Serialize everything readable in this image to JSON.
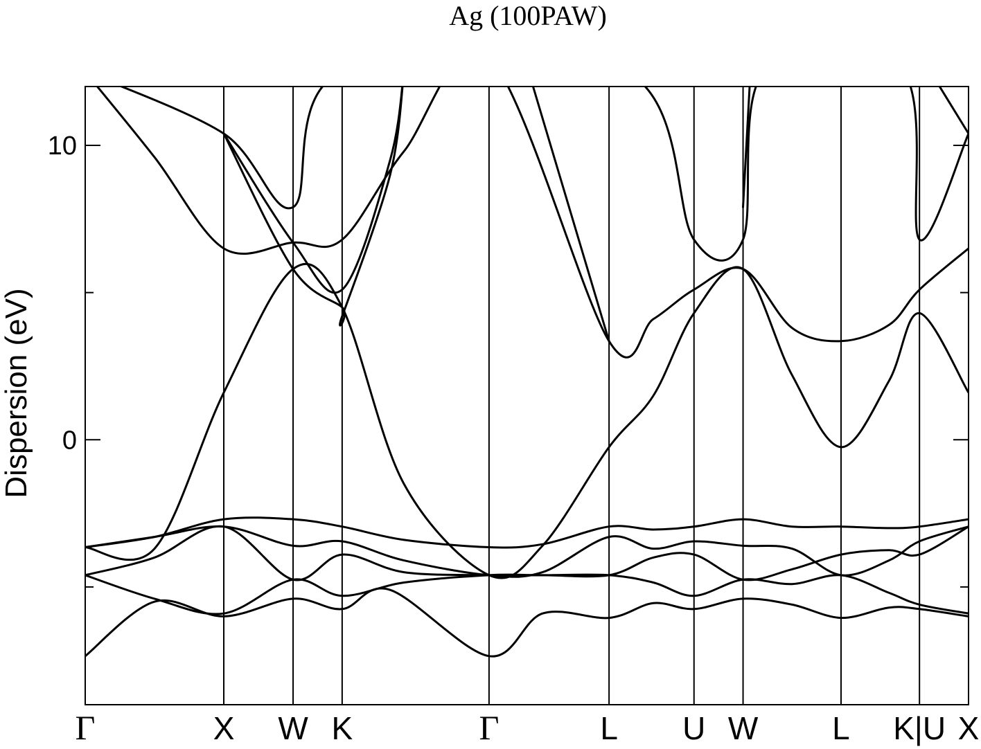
{
  "chart_data": {
    "type": "line",
    "title": "Ag (100PAW)",
    "xlabel": "",
    "ylabel": "Dispersion (eV)",
    "ylim": [
      -9.0,
      12.0
    ],
    "yticks": [
      {
        "value": 10,
        "label": "10"
      },
      {
        "value": 0,
        "label": "0"
      }
    ],
    "yticks_minor": [
      5,
      -5
    ],
    "grid": false,
    "legend": "none",
    "kpoints": [
      {
        "label": "Γ",
        "x": 0.0
      },
      {
        "label": "X",
        "x": 1.0
      },
      {
        "label": "W",
        "x": 1.5
      },
      {
        "label": "K",
        "x": 1.854
      },
      {
        "label": "Γ",
        "x": 2.914
      },
      {
        "label": "L",
        "x": 3.78
      },
      {
        "label": "U",
        "x": 4.393
      },
      {
        "label": "W",
        "x": 4.747
      },
      {
        "label": "L",
        "x": 5.454
      },
      {
        "label": "K|U",
        "x": 6.02
      },
      {
        "label": "X",
        "x": 6.374
      }
    ],
    "xlim": [
      0.0,
      6.374
    ],
    "series": [
      {
        "values": [
          [
            0,
            -7.35
          ],
          [
            0.5,
            -5.5
          ],
          [
            1.0,
            -6.0
          ],
          [
            1.5,
            -5.4
          ],
          [
            1.854,
            -5.75
          ],
          [
            2.2,
            -5.1
          ],
          [
            2.914,
            -7.35
          ],
          [
            3.3,
            -5.9
          ],
          [
            3.78,
            -6.05
          ],
          [
            4.1,
            -5.55
          ],
          [
            4.393,
            -5.75
          ],
          [
            4.747,
            -5.4
          ],
          [
            5.1,
            -5.6
          ],
          [
            5.454,
            -6.05
          ],
          [
            5.8,
            -5.7
          ],
          [
            6.02,
            -5.75
          ],
          [
            6.374,
            -6.0
          ]
        ]
      },
      {
        "values": [
          [
            0,
            -4.6
          ],
          [
            0.5,
            -5.4
          ],
          [
            1.0,
            -5.9
          ],
          [
            1.5,
            -4.75
          ],
          [
            1.854,
            -5.3
          ],
          [
            2.3,
            -4.85
          ],
          [
            2.914,
            -4.6
          ],
          [
            3.3,
            -4.6
          ],
          [
            3.78,
            -4.6
          ],
          [
            4.1,
            -4.85
          ],
          [
            4.393,
            -5.3
          ],
          [
            4.747,
            -4.75
          ],
          [
            5.1,
            -4.9
          ],
          [
            5.454,
            -4.6
          ],
          [
            5.8,
            -5.2
          ],
          [
            6.02,
            -5.6
          ],
          [
            6.374,
            -5.9
          ]
        ]
      },
      {
        "values": [
          [
            0,
            -4.6
          ],
          [
            0.5,
            -4.0
          ],
          [
            1.0,
            -2.95
          ],
          [
            1.5,
            -4.75
          ],
          [
            1.854,
            -3.9
          ],
          [
            2.3,
            -4.5
          ],
          [
            2.914,
            -4.6
          ],
          [
            3.3,
            -4.6
          ],
          [
            3.78,
            -4.6
          ],
          [
            4.1,
            -4.0
          ],
          [
            4.393,
            -3.9
          ],
          [
            4.747,
            -4.75
          ],
          [
            5.1,
            -4.4
          ],
          [
            5.454,
            -3.9
          ],
          [
            5.8,
            -3.75
          ],
          [
            6.02,
            -3.9
          ],
          [
            6.374,
            -2.95
          ]
        ]
      },
      {
        "values": [
          [
            0,
            -3.65
          ],
          [
            0.5,
            -3.3
          ],
          [
            1.0,
            -2.95
          ],
          [
            1.5,
            -3.6
          ],
          [
            1.854,
            -3.45
          ],
          [
            2.3,
            -4.1
          ],
          [
            2.914,
            -4.6
          ],
          [
            3.3,
            -4.5
          ],
          [
            3.78,
            -3.3
          ],
          [
            4.1,
            -3.7
          ],
          [
            4.393,
            -3.45
          ],
          [
            4.747,
            -3.6
          ],
          [
            5.1,
            -3.7
          ],
          [
            5.454,
            -4.6
          ],
          [
            5.8,
            -4.1
          ],
          [
            6.02,
            -3.45
          ],
          [
            6.374,
            -2.95
          ]
        ]
      },
      {
        "values": [
          [
            0,
            -3.65
          ],
          [
            0.5,
            -3.3
          ],
          [
            1.0,
            -2.7
          ],
          [
            1.5,
            -2.7
          ],
          [
            1.854,
            -2.95
          ],
          [
            2.3,
            -3.4
          ],
          [
            2.914,
            -3.65
          ],
          [
            3.3,
            -3.55
          ],
          [
            3.78,
            -2.95
          ],
          [
            4.1,
            -3.05
          ],
          [
            4.393,
            -2.95
          ],
          [
            4.747,
            -2.7
          ],
          [
            5.1,
            -2.95
          ],
          [
            5.454,
            -2.95
          ],
          [
            5.8,
            -3.0
          ],
          [
            6.02,
            -2.95
          ],
          [
            6.374,
            -2.7
          ]
        ]
      },
      {
        "values": [
          [
            0,
            -3.65
          ],
          [
            0.5,
            -3.7
          ],
          [
            1.0,
            1.6
          ],
          [
            1.5,
            5.8
          ],
          [
            1.854,
            4.5
          ],
          [
            2.3,
            -1.5
          ],
          [
            2.914,
            -4.6
          ],
          [
            3.3,
            -3.6
          ],
          [
            3.78,
            -0.25
          ],
          [
            4.1,
            1.5
          ],
          [
            4.393,
            4.3
          ],
          [
            4.747,
            5.8
          ],
          [
            5.1,
            2.2
          ],
          [
            5.454,
            -0.25
          ],
          [
            5.8,
            2.0
          ],
          [
            6.02,
            4.3
          ],
          [
            6.374,
            1.6
          ]
        ]
      },
      {
        "values": [
          [
            0,
            12.5
          ],
          [
            0.5,
            9.6
          ],
          [
            1.0,
            6.5
          ],
          [
            1.5,
            6.7
          ],
          [
            1.854,
            6.8
          ],
          [
            2.3,
            9.8
          ],
          [
            2.914,
            13.0
          ],
          [
            3.78,
            3.35
          ],
          [
            4.1,
            4.1
          ],
          [
            4.393,
            5.1
          ],
          [
            4.747,
            5.8
          ],
          [
            5.1,
            3.8
          ],
          [
            5.454,
            3.35
          ],
          [
            5.8,
            3.9
          ],
          [
            6.02,
            5.1
          ],
          [
            6.374,
            6.5
          ]
        ]
      },
      {
        "values": [
          [
            0,
            12.5
          ],
          [
            1.0,
            10.4
          ],
          [
            1.5,
            7.9
          ],
          [
            1.854,
            12.5
          ],
          [
            3.9,
            12.5
          ],
          [
            4.393,
            6.8
          ],
          [
            4.747,
            6.8
          ],
          [
            4.9,
            12.5
          ],
          [
            5.9,
            12.5
          ],
          [
            6.02,
            6.8
          ],
          [
            6.374,
            10.4
          ]
        ]
      },
      {
        "values": [
          [
            1.0,
            10.4
          ],
          [
            1.5,
            5.8
          ],
          [
            1.854,
            4.5
          ],
          [
            1.854,
            4.2
          ],
          [
            2.2,
            9.0
          ],
          [
            2.3,
            12.5
          ]
        ]
      },
      {
        "values": [
          [
            1.0,
            10.4
          ],
          [
            1.5,
            6.7
          ],
          [
            1.854,
            5.1
          ],
          [
            2.2,
            9.5
          ],
          [
            2.3,
            12.5
          ]
        ]
      },
      {
        "values": [
          [
            3.2,
            12.5
          ],
          [
            3.78,
            3.35
          ]
        ]
      },
      {
        "values": [
          [
            4.8,
            12.5
          ],
          [
            4.747,
            7.9
          ]
        ]
      },
      {
        "values": [
          [
            6.1,
            12.5
          ],
          [
            6.374,
            10.4
          ]
        ]
      }
    ]
  }
}
